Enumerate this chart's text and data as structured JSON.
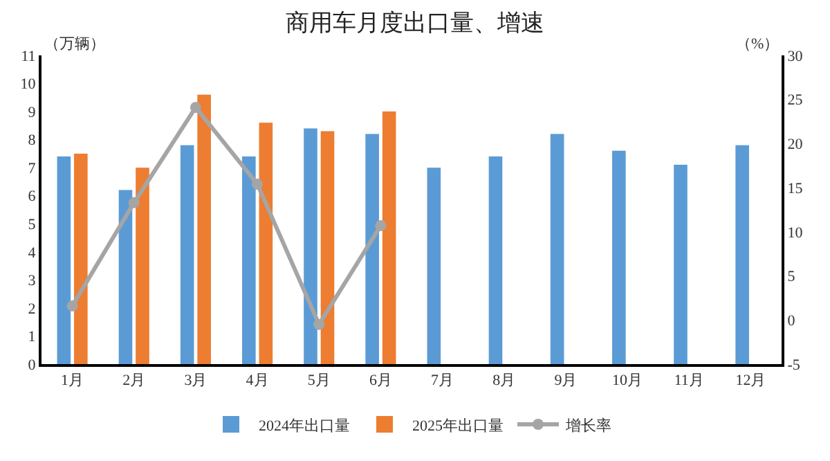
{
  "chart_data": {
    "type": "bar",
    "title": "商用车月度出口量、增速",
    "ylabel": "（万辆）",
    "y2label": "（%）",
    "categories": [
      "1月",
      "2月",
      "3月",
      "4月",
      "5月",
      "6月",
      "7月",
      "8月",
      "9月",
      "10月",
      "11月",
      "12月"
    ],
    "series": [
      {
        "name": "2024年出口量",
        "color": "#5b9bd5",
        "values": [
          7.4,
          6.2,
          7.8,
          7.4,
          8.4,
          8.2,
          7.0,
          7.4,
          8.2,
          7.6,
          7.1,
          7.8
        ]
      },
      {
        "name": "2025年出口量",
        "color": "#ed7d31",
        "values": [
          7.5,
          7.0,
          9.6,
          8.6,
          8.3,
          9.0,
          null,
          null,
          null,
          null,
          null,
          null
        ]
      },
      {
        "name": "增长率",
        "type": "line",
        "axis": "y2",
        "color": "#a5a5a5",
        "marker": "circle",
        "values": [
          1.6,
          13.3,
          24.1,
          15.4,
          -0.5,
          10.7,
          null,
          null,
          null,
          null,
          null,
          null
        ]
      }
    ],
    "ylim": [
      0,
      11
    ],
    "yticks": [
      0,
      1,
      2,
      3,
      4,
      5,
      6,
      7,
      8,
      9,
      10,
      11
    ],
    "y2lim": [
      -5,
      30
    ],
    "y2ticks": [
      -5,
      0,
      5,
      10,
      15,
      20,
      25,
      30
    ],
    "grid": false,
    "legend": "bottom"
  }
}
